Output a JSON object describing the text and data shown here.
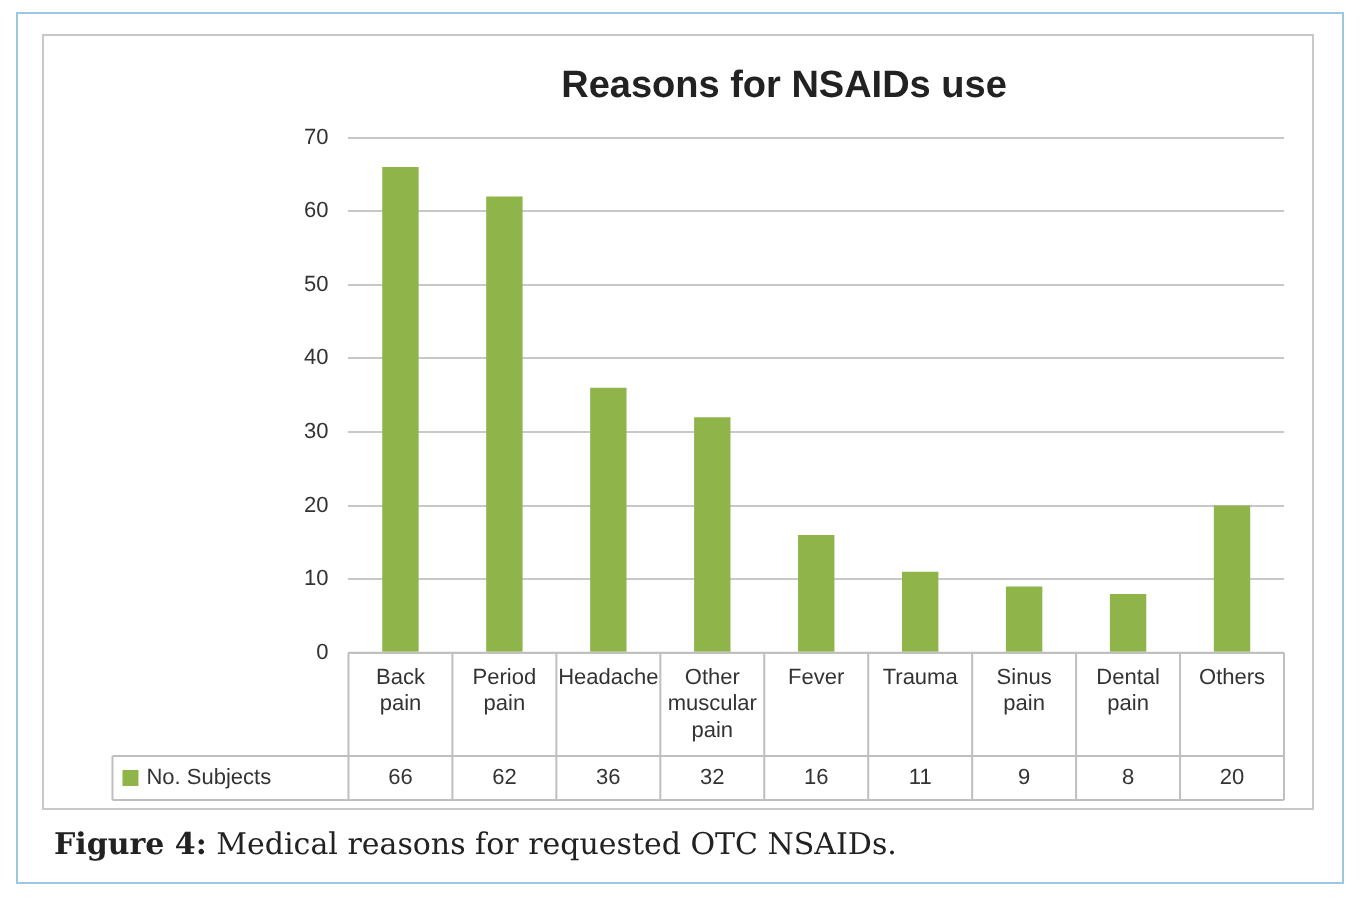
{
  "chart_data": {
    "type": "bar",
    "title": "Reasons for NSAIDs use",
    "categories": [
      "Back pain",
      "Period pain",
      "Headache",
      "Other muscular pain",
      "Fever",
      "Trauma",
      "Sinus pain",
      "Dental pain",
      "Others"
    ],
    "series": [
      {
        "name": "No. Subjects",
        "color": "#8fb54a",
        "values": [
          66,
          62,
          36,
          32,
          16,
          11,
          9,
          8,
          20
        ]
      }
    ],
    "ylim": [
      0,
      70
    ],
    "yticks": [
      0,
      10,
      20,
      30,
      40,
      50,
      60,
      70
    ],
    "grid": "y",
    "legend": "bottom",
    "data_labels": true,
    "annotations": [
      "Figure 4: Medical reasons for requested OTC NSAIDs."
    ]
  }
}
